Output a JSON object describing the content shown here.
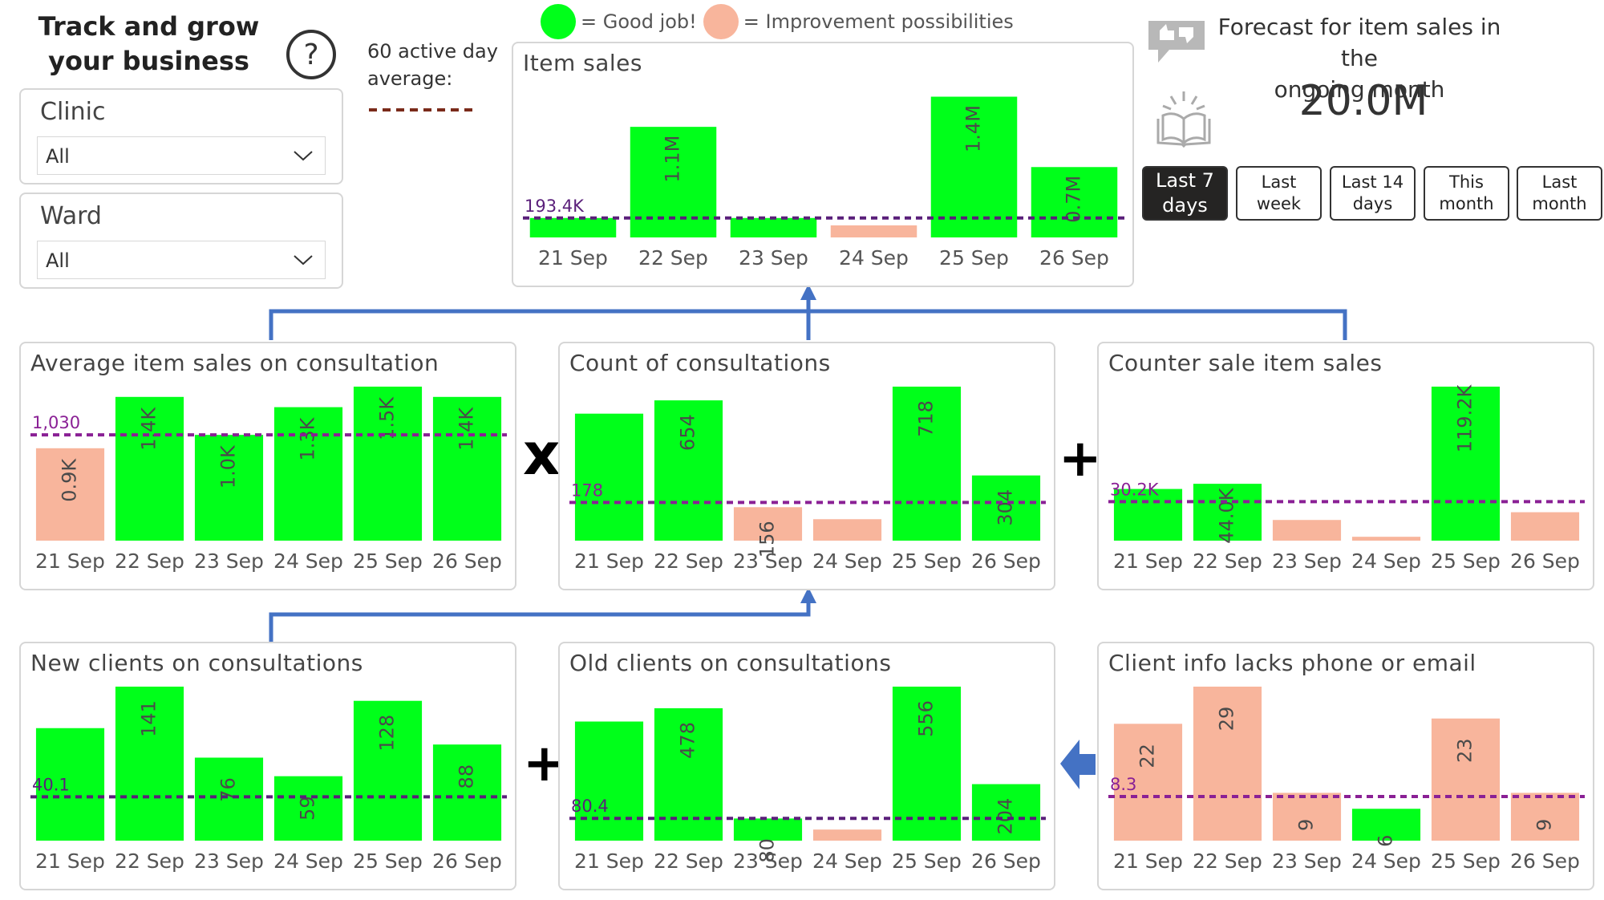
{
  "header": {
    "title": "Track and grow your business",
    "help_icon": "question-circle-icon"
  },
  "legend": {
    "good_label": "= Good job!",
    "good_color": "#00ff1a",
    "improve_label": "= Improvement possibilities",
    "improve_color": "#f8b59c"
  },
  "avg_note": {
    "text_line1": "60 active day",
    "text_line2": "average:",
    "line_color": "#7a2a1a"
  },
  "slicers": {
    "clinic": {
      "label": "Clinic",
      "value": "All"
    },
    "ward": {
      "label": "Ward",
      "value": "All"
    }
  },
  "forecast": {
    "title_line1": "Forecast for item sales in the",
    "title_line2": "ongoing month",
    "value": "20.0M",
    "icons": [
      "thumbs-feedback-icon",
      "book-sparkle-icon"
    ]
  },
  "periods": [
    {
      "label_line1": "Last 7",
      "label_line2": "days",
      "active": true
    },
    {
      "label_line1": "Last week",
      "label_line2": "",
      "active": false
    },
    {
      "label_line1": "Last 14",
      "label_line2": "days",
      "active": false
    },
    {
      "label_line1": "This month",
      "label_line2": "",
      "active": false
    },
    {
      "label_line1": "Last month",
      "label_line2": "",
      "active": false
    }
  ],
  "operators": {
    "multiply": "x",
    "plus1": "+",
    "plus2": "+"
  },
  "chart_data": [
    {
      "id": "item-sales",
      "type": "bar",
      "title": "Item sales",
      "categories": [
        "21 Sep",
        "22 Sep",
        "23 Sep",
        "24 Sep",
        "25 Sep",
        "26 Sep"
      ],
      "values": [
        193400,
        1100000,
        193400,
        120000,
        1400000,
        700000
      ],
      "value_labels": [
        "",
        "1.1M",
        "",
        "",
        "1.4M",
        "0.7M"
      ],
      "colors": [
        "good",
        "good",
        "good",
        "improve",
        "good",
        "good"
      ],
      "average": 193400,
      "average_label": "193.4K",
      "ylim": [
        0,
        1500000
      ]
    },
    {
      "id": "avg-item-sales",
      "type": "bar",
      "title": "Average item sales on consultation",
      "categories": [
        "21 Sep",
        "22 Sep",
        "23 Sep",
        "24 Sep",
        "25 Sep",
        "26 Sep"
      ],
      "values": [
        900,
        1400,
        1030,
        1300,
        1500,
        1400
      ],
      "value_labels": [
        "0.9K",
        "1.4K",
        "1.0K",
        "1.3K",
        "1.5K",
        "1.4K"
      ],
      "colors": [
        "improve",
        "good",
        "good",
        "good",
        "good",
        "good"
      ],
      "average": 1030,
      "average_label": "1,030",
      "ylim": [
        0,
        1500
      ]
    },
    {
      "id": "count-consultations",
      "type": "bar",
      "title": "Count of consultations",
      "categories": [
        "21 Sep",
        "22 Sep",
        "23 Sep",
        "24 Sep",
        "25 Sep",
        "26 Sep"
      ],
      "values": [
        592,
        654,
        156,
        100,
        718,
        304
      ],
      "value_labels": [
        "",
        "654",
        "156",
        "",
        "718",
        "304"
      ],
      "colors": [
        "good",
        "good",
        "improve",
        "improve",
        "good",
        "good"
      ],
      "average": 178,
      "average_label": "178",
      "ylim": [
        0,
        718
      ]
    },
    {
      "id": "counter-sale",
      "type": "bar",
      "title": "Counter sale item sales",
      "categories": [
        "21 Sep",
        "22 Sep",
        "23 Sep",
        "24 Sep",
        "25 Sep",
        "26 Sep"
      ],
      "values": [
        40000,
        44000,
        16000,
        3000,
        119200,
        22000
      ],
      "value_labels": [
        "",
        "44.0K",
        "",
        "",
        "119.2K",
        ""
      ],
      "colors": [
        "good",
        "good",
        "improve",
        "improve",
        "good",
        "improve"
      ],
      "average": 30200,
      "average_label": "30.2K",
      "ylim": [
        0,
        119200
      ]
    },
    {
      "id": "new-clients",
      "type": "bar",
      "title": "New clients on consultations",
      "categories": [
        "21 Sep",
        "22 Sep",
        "23 Sep",
        "24 Sep",
        "25 Sep",
        "26 Sep"
      ],
      "values": [
        103,
        141,
        76,
        59,
        128,
        88
      ],
      "value_labels": [
        "",
        "141",
        "76",
        "59",
        "128",
        "88"
      ],
      "colors": [
        "good",
        "good",
        "good",
        "good",
        "good",
        "good"
      ],
      "average": 40.1,
      "average_label": "40.1",
      "ylim": [
        0,
        141
      ]
    },
    {
      "id": "old-clients",
      "type": "bar",
      "title": "Old clients on consultations",
      "categories": [
        "21 Sep",
        "22 Sep",
        "23 Sep",
        "24 Sep",
        "25 Sep",
        "26 Sep"
      ],
      "values": [
        430,
        478,
        80,
        40,
        556,
        204
      ],
      "value_labels": [
        "",
        "478",
        "80",
        "",
        "556",
        "204"
      ],
      "colors": [
        "good",
        "good",
        "good",
        "improve",
        "good",
        "good"
      ],
      "average": 80.4,
      "average_label": "80.4",
      "ylim": [
        0,
        556
      ]
    },
    {
      "id": "client-info",
      "type": "bar",
      "title": "Client info lacks phone or email",
      "categories": [
        "21 Sep",
        "22 Sep",
        "23 Sep",
        "24 Sep",
        "25 Sep",
        "26 Sep"
      ],
      "values": [
        22,
        29,
        9,
        6,
        23,
        9
      ],
      "value_labels": [
        "22",
        "29",
        "9",
        "6",
        "23",
        "9"
      ],
      "colors": [
        "improve",
        "improve",
        "improve",
        "good",
        "improve",
        "improve"
      ],
      "average": 8.3,
      "average_label": "8.3",
      "ylim": [
        0,
        29
      ]
    }
  ]
}
